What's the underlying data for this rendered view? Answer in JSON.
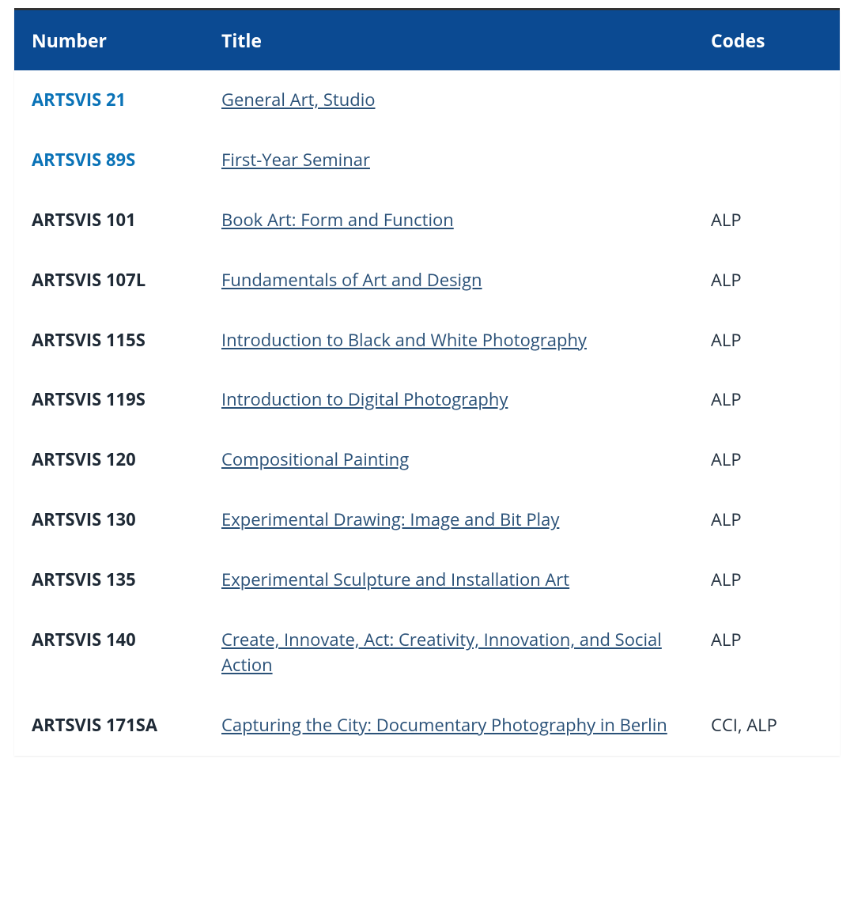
{
  "table": {
    "columns": {
      "number": "Number",
      "title": "Title",
      "codes": "Codes"
    },
    "header_bg": "#0b4a92",
    "header_fg": "#ffffff",
    "link_color": "#2a5178",
    "number_color": "#1f2a36",
    "number_highlight_color": "#0b73b7",
    "codes_color": "#22303f",
    "rows": [
      {
        "number": "ARTSVIS 21",
        "title": "General Art, Studio",
        "codes": "",
        "highlight": true
      },
      {
        "number": "ARTSVIS 89S",
        "title": "First-Year Seminar",
        "codes": "",
        "highlight": true
      },
      {
        "number": "ARTSVIS 101",
        "title": "Book Art: Form and Function",
        "codes": "ALP",
        "highlight": false
      },
      {
        "number": "ARTSVIS 107L",
        "title": "Fundamentals of Art and Design",
        "codes": "ALP",
        "highlight": false
      },
      {
        "number": "ARTSVIS 115S",
        "title": "Introduction to Black and White Photography",
        "codes": "ALP",
        "highlight": false
      },
      {
        "number": "ARTSVIS 119S",
        "title": "Introduction to Digital Photography",
        "codes": "ALP",
        "highlight": false
      },
      {
        "number": "ARTSVIS 120",
        "title": "Compositional Painting",
        "codes": "ALP",
        "highlight": false
      },
      {
        "number": "ARTSVIS 130",
        "title": "Experimental Drawing: Image and Bit Play",
        "codes": "ALP",
        "highlight": false
      },
      {
        "number": "ARTSVIS 135",
        "title": "Experimental Sculpture and Installation Art",
        "codes": "ALP",
        "highlight": false
      },
      {
        "number": "ARTSVIS 140",
        "title": "Create, Innovate, Act: Creativity, Innovation, and Social Action",
        "codes": "ALP",
        "highlight": false
      },
      {
        "number": "ARTSVIS 171SA",
        "title": "Capturing the City: Documentary Photography in Berlin",
        "codes": "CCI, ALP",
        "highlight": false
      }
    ]
  }
}
